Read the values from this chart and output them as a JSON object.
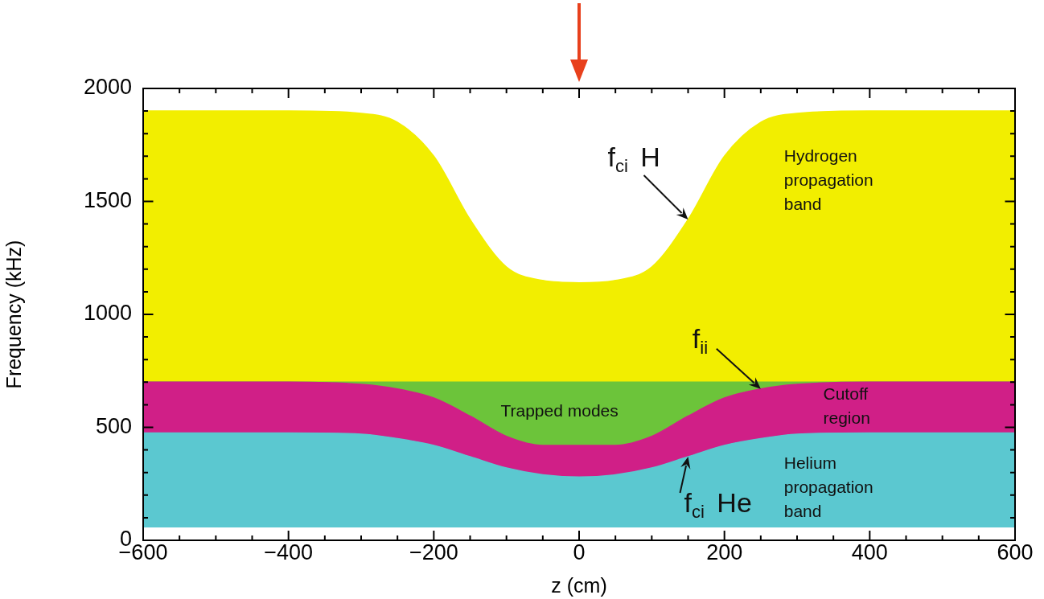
{
  "chart_data": {
    "type": "area",
    "xlabel": "z (cm)",
    "ylabel": "Frequency (kHz)",
    "x": [
      -600,
      -400,
      -300,
      -250,
      -200,
      -150,
      -100,
      -50,
      0,
      50,
      100,
      150,
      200,
      250,
      300,
      400,
      600
    ],
    "series": [
      {
        "type": "line",
        "color": "#5bc8d0",
        "values": [
          60,
          60,
          60,
          60,
          60,
          60,
          60,
          60,
          60,
          60,
          60,
          60,
          60,
          60,
          60,
          60,
          60
        ]
      },
      {
        "name": "f$_{ci}$ He",
        "color": "#5bc8d0",
        "values": [
          475,
          475,
          470,
          450,
          420,
          370,
          320,
          290,
          280,
          290,
          320,
          370,
          420,
          450,
          470,
          475,
          475
        ]
      },
      {
        "name": "f$_{ii}$",
        "color": "#d01f87",
        "values": [
          700,
          700,
          690,
          670,
          630,
          550,
          460,
          420,
          420,
          420,
          460,
          550,
          630,
          670,
          690,
          700,
          700
        ]
      },
      {
        "color": "#6cc43a",
        "values": [
          700,
          700,
          700,
          700,
          700,
          700,
          700,
          700,
          700,
          700,
          700,
          700,
          700,
          700,
          700,
          700,
          700
        ]
      },
      {
        "name": "f$_{ci}$ H",
        "color": "#f2ee00",
        "values": [
          1900,
          1900,
          1890,
          1850,
          1700,
          1420,
          1210,
          1150,
          1140,
          1150,
          1210,
          1420,
          1700,
          1850,
          1890,
          1900,
          1900
        ]
      }
    ],
    "xlim": [
      -600,
      600
    ],
    "ylim": [
      0,
      2000
    ],
    "xticks": [
      -600,
      {
        "value": -550,
        "label": null
      },
      {
        "value": -500,
        "label": null
      },
      {
        "value": -450,
        "label": null
      },
      -400,
      {
        "value": -350,
        "label": null
      },
      {
        "value": -300,
        "label": null
      },
      {
        "value": -250,
        "label": null
      },
      -200,
      {
        "value": -150,
        "label": null
      },
      {
        "value": -100,
        "label": null
      },
      {
        "value": -50,
        "label": null
      },
      0,
      {
        "value": 50,
        "label": null
      },
      {
        "value": 100,
        "label": null
      },
      {
        "value": 150,
        "label": null
      },
      200,
      {
        "value": 250,
        "label": null
      },
      {
        "value": 300,
        "label": null
      },
      {
        "value": 350,
        "label": null
      },
      400,
      {
        "value": 450,
        "label": null
      },
      {
        "value": 500,
        "label": null
      },
      {
        "value": 550,
        "label": null
      },
      600
    ],
    "yticks": [
      0,
      {
        "value": 100,
        "label": null
      },
      {
        "value": 200,
        "label": null
      },
      {
        "value": 300,
        "label": null
      },
      {
        "value": 400,
        "label": null
      },
      500,
      {
        "value": 600,
        "label": null
      },
      {
        "value": 700,
        "label": null
      },
      {
        "value": 800,
        "label": null
      },
      {
        "value": 900,
        "label": null
      },
      1000,
      {
        "value": 1100,
        "label": null
      },
      {
        "value": 1200,
        "label": null
      },
      {
        "value": 1300,
        "label": null
      },
      {
        "value": 1400,
        "label": null
      },
      1500,
      {
        "value": 1600,
        "label": null
      },
      {
        "value": 1700,
        "label": null
      },
      {
        "value": 1800,
        "label": null
      },
      {
        "value": 1900,
        "label": null
      },
      2000
    ],
    "annotations": [
      "Hydrogen\npropagation\nband",
      "Trapped modes",
      "Cutoff\nregion",
      "Helium\npropagation\nband"
    ],
    "grid": false,
    "legend": false,
    "marker": "none",
    "line_style": "solid"
  }
}
